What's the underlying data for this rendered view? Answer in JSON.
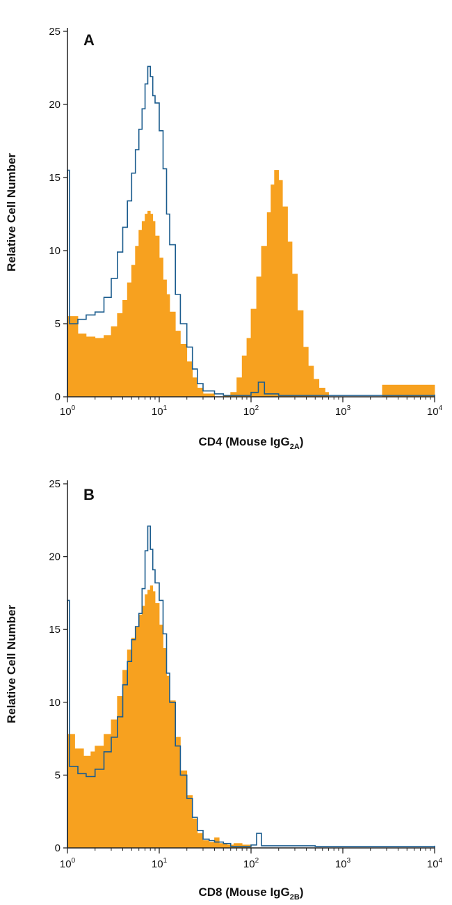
{
  "chart_data": [
    {
      "type": "area",
      "panel_label": "A",
      "ylabel": "Relative Cell Number",
      "xlabel_main": "CD4 (Mouse IgG",
      "xlabel_sub": "2A",
      "xlabel_end": ")",
      "x_scale": "log",
      "xlim": [
        1,
        10000
      ],
      "ylim": [
        0,
        25
      ],
      "y_ticks": [
        0,
        5,
        10,
        15,
        20,
        25
      ],
      "x_ticks": [
        {
          "value": 1,
          "base": "10",
          "exp": "0"
        },
        {
          "value": 10,
          "base": "10",
          "exp": "1"
        },
        {
          "value": 100,
          "base": "10",
          "exp": "2"
        },
        {
          "value": 1000,
          "base": "10",
          "exp": "3"
        },
        {
          "value": 10000,
          "base": "10",
          "exp": "4"
        }
      ],
      "grid": false,
      "series": [
        {
          "role": "filled",
          "color": "#F7A11F",
          "points": [
            [
              1,
              5.5
            ],
            [
              1.3,
              4.3
            ],
            [
              1.6,
              4.1
            ],
            [
              2,
              4.0
            ],
            [
              2.5,
              4.2
            ],
            [
              3,
              4.8
            ],
            [
              3.5,
              5.7
            ],
            [
              4,
              6.6
            ],
            [
              4.5,
              7.8
            ],
            [
              5,
              9.0
            ],
            [
              5.5,
              10.3
            ],
            [
              6,
              11.4
            ],
            [
              6.5,
              12.0
            ],
            [
              7,
              12.5
            ],
            [
              7.5,
              12.7
            ],
            [
              8,
              12.5
            ],
            [
              8.5,
              12.0
            ],
            [
              9,
              11.0
            ],
            [
              10,
              9.5
            ],
            [
              11,
              8.0
            ],
            [
              12,
              7.0
            ],
            [
              13,
              5.8
            ],
            [
              15,
              4.5
            ],
            [
              17,
              3.6
            ],
            [
              20,
              2.4
            ],
            [
              23,
              1.3
            ],
            [
              26,
              0.6
            ],
            [
              30,
              0.2
            ],
            [
              40,
              0
            ],
            [
              50,
              0.1
            ],
            [
              60,
              0.3
            ],
            [
              70,
              1.3
            ],
            [
              80,
              2.8
            ],
            [
              90,
              4.0
            ],
            [
              100,
              6.0
            ],
            [
              115,
              8.2
            ],
            [
              130,
              10.3
            ],
            [
              150,
              12.6
            ],
            [
              165,
              14.5
            ],
            [
              180,
              15.5
            ],
            [
              200,
              14.8
            ],
            [
              220,
              13.0
            ],
            [
              250,
              10.6
            ],
            [
              280,
              8.4
            ],
            [
              320,
              5.9
            ],
            [
              370,
              3.4
            ],
            [
              420,
              2.1
            ],
            [
              480,
              1.2
            ],
            [
              550,
              0.6
            ],
            [
              640,
              0.3
            ],
            [
              700,
              0
            ],
            [
              2700,
              0.8
            ],
            [
              10000,
              0
            ]
          ]
        },
        {
          "role": "outline",
          "color": "#1B5C8E",
          "points": [
            [
              1,
              15.5
            ],
            [
              1.05,
              5.0
            ],
            [
              1.3,
              5.3
            ],
            [
              1.6,
              5.6
            ],
            [
              2,
              5.8
            ],
            [
              2.5,
              6.8
            ],
            [
              3,
              8.1
            ],
            [
              3.5,
              9.9
            ],
            [
              4,
              11.6
            ],
            [
              4.5,
              13.4
            ],
            [
              5,
              15.3
            ],
            [
              5.5,
              16.9
            ],
            [
              6,
              18.3
            ],
            [
              6.5,
              19.7
            ],
            [
              7,
              21.4
            ],
            [
              7.5,
              22.6
            ],
            [
              8,
              21.9
            ],
            [
              8.5,
              20.6
            ],
            [
              9,
              20.1
            ],
            [
              10,
              18.2
            ],
            [
              11,
              15.6
            ],
            [
              12,
              12.5
            ],
            [
              13,
              10.4
            ],
            [
              15,
              7.0
            ],
            [
              17,
              5.0
            ],
            [
              20,
              3.4
            ],
            [
              23,
              1.9
            ],
            [
              26,
              0.9
            ],
            [
              30,
              0.4
            ],
            [
              40,
              0.2
            ],
            [
              50,
              0.1
            ],
            [
              60,
              0.1
            ],
            [
              70,
              0.1
            ],
            [
              100,
              0.3
            ],
            [
              120,
              1.0
            ],
            [
              140,
              0.2
            ],
            [
              200,
              0.1
            ],
            [
              500,
              0.1
            ],
            [
              1000,
              0.1
            ],
            [
              3000,
              0.1
            ],
            [
              10000,
              0.15
            ]
          ]
        }
      ]
    },
    {
      "type": "area",
      "panel_label": "B",
      "ylabel": "Relative Cell Number",
      "xlabel_main": "CD8 (Mouse IgG",
      "xlabel_sub": "2B",
      "xlabel_end": ")",
      "x_scale": "log",
      "xlim": [
        1,
        10000
      ],
      "ylim": [
        0,
        25
      ],
      "y_ticks": [
        0,
        5,
        10,
        15,
        20,
        25
      ],
      "x_ticks": [
        {
          "value": 1,
          "base": "10",
          "exp": "0"
        },
        {
          "value": 10,
          "base": "10",
          "exp": "1"
        },
        {
          "value": 100,
          "base": "10",
          "exp": "2"
        },
        {
          "value": 1000,
          "base": "10",
          "exp": "3"
        },
        {
          "value": 10000,
          "base": "10",
          "exp": "4"
        }
      ],
      "grid": false,
      "series": [
        {
          "role": "filled",
          "color": "#F7A11F",
          "points": [
            [
              1,
              7.8
            ],
            [
              1.2,
              6.8
            ],
            [
              1.5,
              6.3
            ],
            [
              1.8,
              6.6
            ],
            [
              2,
              7.0
            ],
            [
              2.5,
              7.8
            ],
            [
              3,
              8.8
            ],
            [
              3.5,
              10.4
            ],
            [
              4,
              12.2
            ],
            [
              4.5,
              13.6
            ],
            [
              5,
              14.4
            ],
            [
              5.5,
              15.2
            ],
            [
              6,
              16.0
            ],
            [
              6.5,
              16.6
            ],
            [
              7,
              17.4
            ],
            [
              7.5,
              17.7
            ],
            [
              8,
              18.0
            ],
            [
              8.5,
              17.6
            ],
            [
              9,
              16.8
            ],
            [
              10,
              15.3
            ],
            [
              11,
              13.7
            ],
            [
              12,
              11.8
            ],
            [
              13,
              10.1
            ],
            [
              15,
              7.6
            ],
            [
              17,
              5.3
            ],
            [
              20,
              3.6
            ],
            [
              23,
              2.0
            ],
            [
              26,
              1.0
            ],
            [
              30,
              0.5
            ],
            [
              35,
              0.4
            ],
            [
              40,
              0.7
            ],
            [
              45,
              0.3
            ],
            [
              55,
              0.2
            ],
            [
              65,
              0.3
            ],
            [
              80,
              0.2
            ],
            [
              100,
              0
            ],
            [
              10000,
              0
            ]
          ]
        },
        {
          "role": "outline",
          "color": "#1B5C8E",
          "points": [
            [
              1,
              17.0
            ],
            [
              1.05,
              5.6
            ],
            [
              1.3,
              5.1
            ],
            [
              1.6,
              4.9
            ],
            [
              2,
              5.4
            ],
            [
              2.5,
              6.6
            ],
            [
              3,
              7.6
            ],
            [
              3.5,
              9.0
            ],
            [
              4,
              11.2
            ],
            [
              4.5,
              12.8
            ],
            [
              5,
              14.3
            ],
            [
              5.5,
              15.2
            ],
            [
              6,
              16.1
            ],
            [
              6.5,
              17.8
            ],
            [
              7,
              20.4
            ],
            [
              7.5,
              22.1
            ],
            [
              8,
              20.5
            ],
            [
              8.5,
              19.1
            ],
            [
              9,
              18.2
            ],
            [
              10,
              17.0
            ],
            [
              11,
              14.7
            ],
            [
              12,
              12.0
            ],
            [
              13,
              10.0
            ],
            [
              15,
              7.0
            ],
            [
              17,
              5.0
            ],
            [
              20,
              3.4
            ],
            [
              23,
              2.1
            ],
            [
              26,
              1.2
            ],
            [
              30,
              0.6
            ],
            [
              35,
              0.5
            ],
            [
              40,
              0.4
            ],
            [
              50,
              0.3
            ],
            [
              60,
              0.1
            ],
            [
              100,
              0.2
            ],
            [
              115,
              1.0
            ],
            [
              130,
              0.15
            ],
            [
              500,
              0.1
            ],
            [
              1000,
              0.1
            ],
            [
              3000,
              0.1
            ],
            [
              10000,
              0.15
            ]
          ]
        }
      ]
    }
  ]
}
